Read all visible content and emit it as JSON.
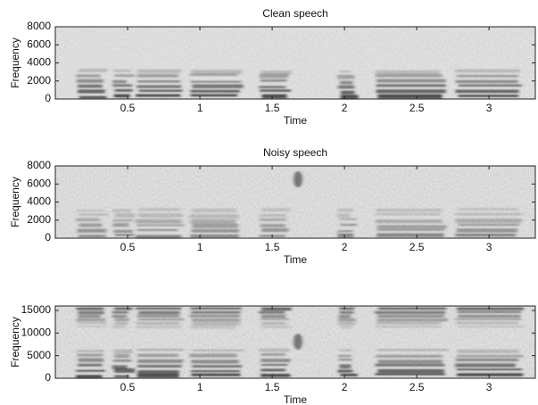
{
  "chart_data": [
    {
      "type": "spectrogram",
      "title": "Clean speech",
      "x_label": "Time",
      "y_label": "Frequency",
      "xlim": [
        0,
        3.32
      ],
      "xticks": [
        0.5,
        1,
        1.5,
        2,
        2.5,
        3
      ],
      "ylim": [
        0,
        8000
      ],
      "yticks": [
        0,
        2000,
        4000,
        6000,
        8000
      ]
    },
    {
      "type": "spectrogram",
      "title": "Noisy speech",
      "x_label": "Time",
      "y_label": "Frequency",
      "xlim": [
        0,
        3.32
      ],
      "xticks": [
        0.5,
        1,
        1.5,
        2,
        2.5,
        3
      ],
      "ylim": [
        0,
        8000
      ],
      "yticks": [
        0,
        2000,
        4000,
        6000,
        8000
      ]
    },
    {
      "type": "spectrogram",
      "x_label": "Time",
      "y_label": "Frequency",
      "xlim": [
        0,
        3.32
      ],
      "xticks": [
        0.5,
        1,
        1.5,
        2,
        2.5,
        3
      ],
      "ylim": [
        0,
        16000
      ],
      "yticks": [
        0,
        5000,
        10000,
        15000
      ]
    }
  ]
}
